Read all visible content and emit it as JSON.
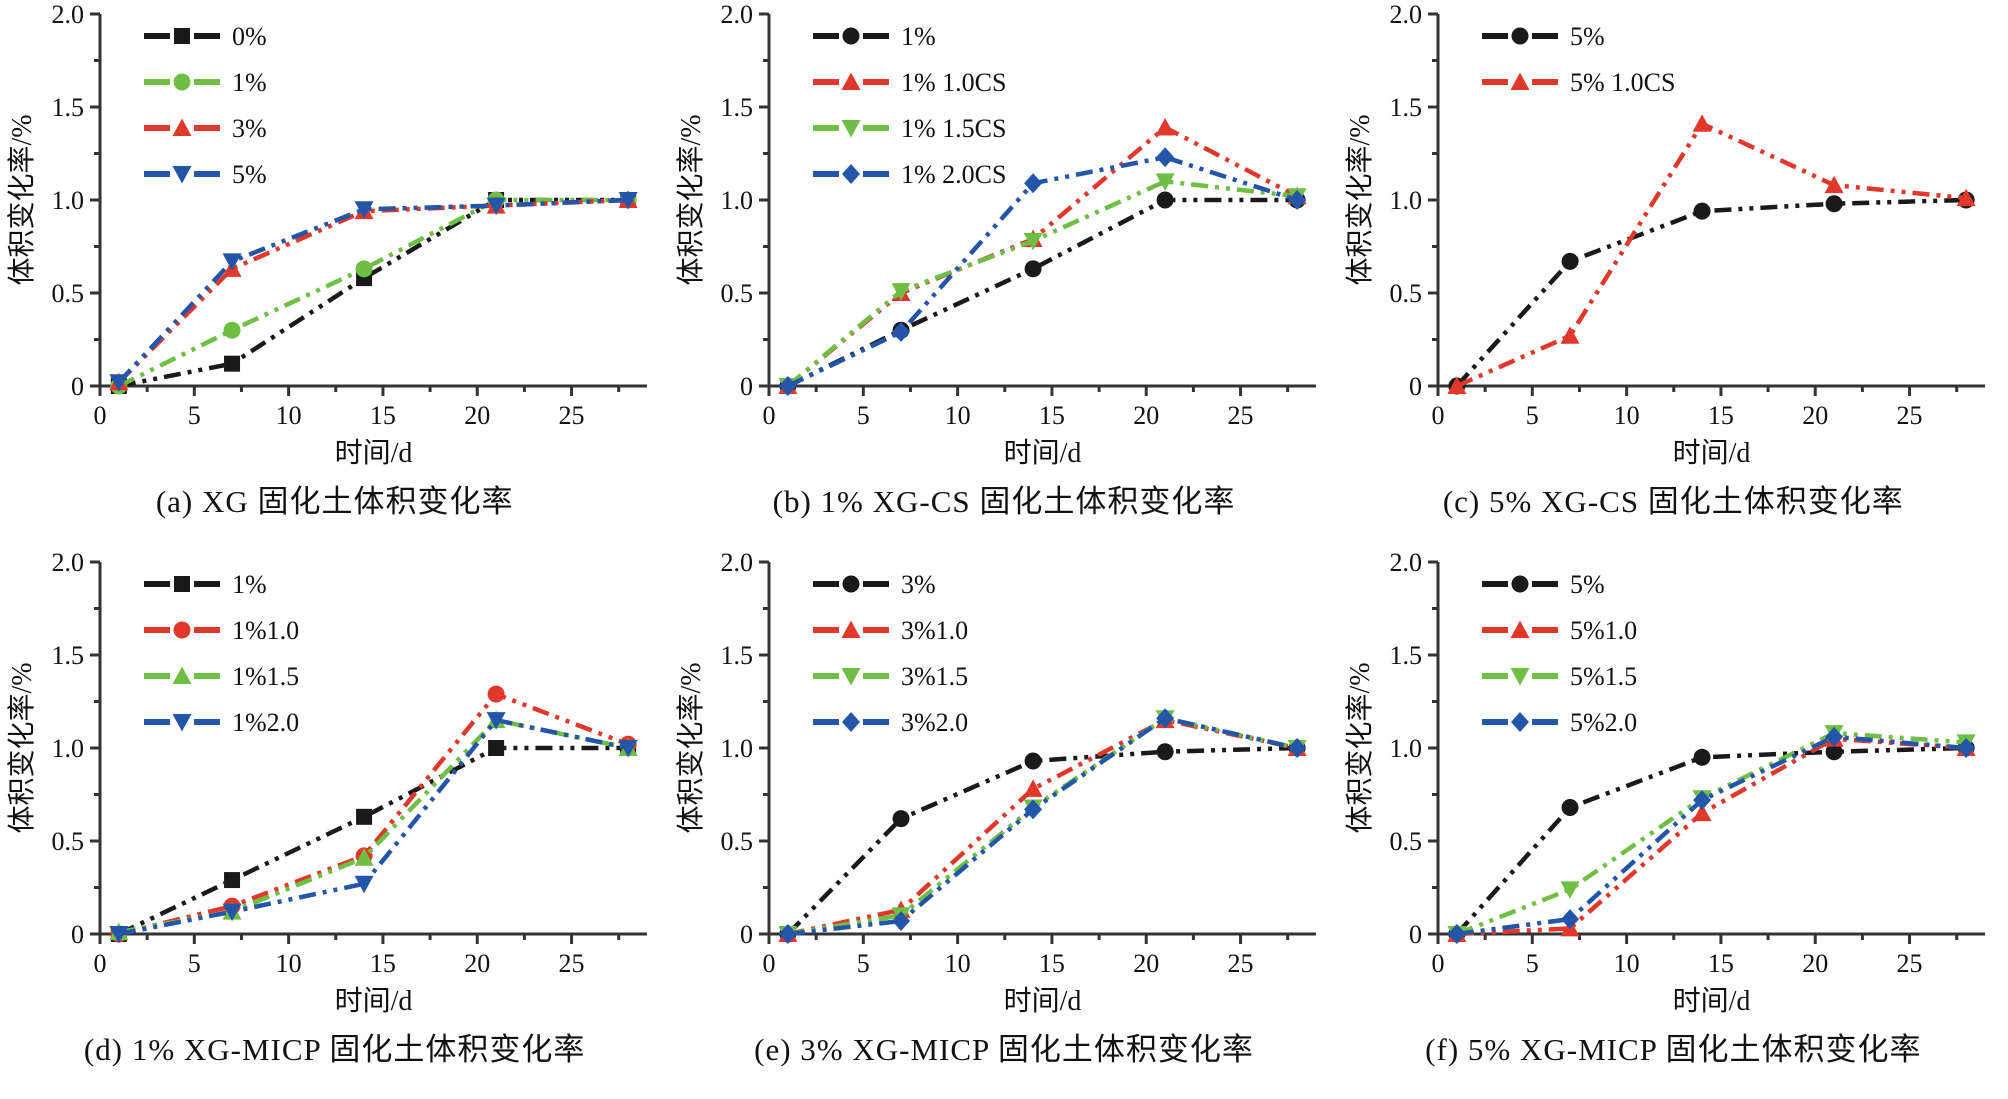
{
  "page": {
    "background": "#ffffff"
  },
  "palette": {
    "black": "#1a1a1a",
    "red": "#e0392b",
    "green": "#6fbf44",
    "blue": "#2356a8",
    "axis": "#333333"
  },
  "chart_data": [
    {
      "id": "a",
      "type": "line",
      "caption": "(a) XG 固化土体积变化率",
      "xlabel": "时间/d",
      "ylabel": "体积变化率/%",
      "xlim": [
        0,
        29
      ],
      "ylim": [
        0,
        2.0
      ],
      "xticks": [
        0,
        5,
        10,
        15,
        20,
        25
      ],
      "xticklabels": [
        "0",
        "5",
        "10",
        "15",
        "20",
        "25"
      ],
      "xminor": [
        2.5,
        7.5,
        12.5,
        17.5,
        22.5,
        27.5
      ],
      "yticks": [
        0,
        0.5,
        1.0,
        1.5,
        2.0
      ],
      "yticklabels": [
        "0",
        "0.5",
        "1.0",
        "1.5",
        "2.0"
      ],
      "yminor": [
        0.25,
        0.75,
        1.25,
        1.75
      ],
      "legend_position": "top-left",
      "grid": false,
      "x": [
        1,
        7,
        14,
        21,
        28
      ],
      "series": [
        {
          "name": "0%",
          "color": "#1a1a1a",
          "marker": "square",
          "values": [
            0,
            0.12,
            0.58,
            1.0,
            1.0
          ]
        },
        {
          "name": "1%",
          "color": "#6fbf44",
          "marker": "circle",
          "values": [
            0,
            0.3,
            0.63,
            1.0,
            1.0
          ]
        },
        {
          "name": "3%",
          "color": "#e0392b",
          "marker": "triangle-up",
          "values": [
            0.02,
            0.63,
            0.94,
            0.97,
            1.0
          ]
        },
        {
          "name": "5%",
          "color": "#2356a8",
          "marker": "triangle-down",
          "values": [
            0.02,
            0.67,
            0.95,
            0.97,
            1.0
          ]
        }
      ]
    },
    {
      "id": "b",
      "type": "line",
      "caption": "(b) 1% XG-CS 固化土体积变化率",
      "xlabel": "时间/d",
      "ylabel": "体积变化率/%",
      "xlim": [
        0,
        29
      ],
      "ylim": [
        0,
        2.0
      ],
      "xticks": [
        0,
        5,
        10,
        15,
        20,
        25
      ],
      "xticklabels": [
        "0",
        "5",
        "10",
        "15",
        "20",
        "25"
      ],
      "xminor": [
        2.5,
        7.5,
        12.5,
        17.5,
        22.5,
        27.5
      ],
      "yticks": [
        0,
        0.5,
        1.0,
        1.5,
        2.0
      ],
      "yticklabels": [
        "0",
        "0.5",
        "1.0",
        "1.5",
        "2.0"
      ],
      "yminor": [
        0.25,
        0.75,
        1.25,
        1.75
      ],
      "legend_position": "top-left",
      "grid": false,
      "x": [
        1,
        7,
        14,
        21,
        28
      ],
      "series": [
        {
          "name": "1%",
          "color": "#1a1a1a",
          "marker": "circle",
          "values": [
            0,
            0.3,
            0.63,
            1.0,
            1.0
          ]
        },
        {
          "name": "1% 1.0CS",
          "color": "#e0392b",
          "marker": "triangle-up",
          "values": [
            0,
            0.5,
            0.79,
            1.39,
            1.02
          ]
        },
        {
          "name": "1% 1.5CS",
          "color": "#6fbf44",
          "marker": "triangle-down",
          "values": [
            0,
            0.51,
            0.78,
            1.1,
            1.02
          ]
        },
        {
          "name": "1% 2.0CS",
          "color": "#2356a8",
          "marker": "diamond",
          "values": [
            0,
            0.29,
            1.09,
            1.23,
            1.0
          ]
        }
      ]
    },
    {
      "id": "c",
      "type": "line",
      "caption": "(c) 5% XG-CS 固化土体积变化率",
      "xlabel": "时间/d",
      "ylabel": "体积变化率/%",
      "xlim": [
        0,
        29
      ],
      "ylim": [
        0,
        2.0
      ],
      "xticks": [
        0,
        5,
        10,
        15,
        20,
        25
      ],
      "xticklabels": [
        "0",
        "5",
        "10",
        "15",
        "20",
        "25"
      ],
      "xminor": [
        2.5,
        7.5,
        12.5,
        17.5,
        22.5,
        27.5
      ],
      "yticks": [
        0,
        0.5,
        1.0,
        1.5,
        2.0
      ],
      "yticklabels": [
        "0",
        "0.5",
        "1.0",
        "1.5",
        "2.0"
      ],
      "yminor": [
        0.25,
        0.75,
        1.25,
        1.75
      ],
      "legend_position": "top-left",
      "grid": false,
      "x": [
        1,
        7,
        14,
        21,
        28
      ],
      "series": [
        {
          "name": "5%",
          "color": "#1a1a1a",
          "marker": "circle",
          "values": [
            0,
            0.67,
            0.94,
            0.98,
            1.0
          ]
        },
        {
          "name": "5% 1.0CS",
          "color": "#e0392b",
          "marker": "triangle-up",
          "values": [
            0,
            0.27,
            1.41,
            1.08,
            1.01
          ]
        }
      ]
    },
    {
      "id": "d",
      "type": "line",
      "caption": "(d) 1% XG-MICP 固化土体积变化率",
      "xlabel": "时间/d",
      "ylabel": "体积变化率/%",
      "xlim": [
        0,
        29
      ],
      "ylim": [
        0,
        2.0
      ],
      "xticks": [
        0,
        5,
        10,
        15,
        20,
        25
      ],
      "xticklabels": [
        "0",
        "5",
        "10",
        "15",
        "20",
        "25"
      ],
      "xminor": [
        2.5,
        7.5,
        12.5,
        17.5,
        22.5,
        27.5
      ],
      "yticks": [
        0,
        0.5,
        1.0,
        1.5,
        2.0
      ],
      "yticklabels": [
        "0",
        "0.5",
        "1.0",
        "1.5",
        "2.0"
      ],
      "yminor": [
        0.25,
        0.75,
        1.25,
        1.75
      ],
      "legend_position": "top-left",
      "grid": false,
      "x": [
        1,
        7,
        14,
        21,
        28
      ],
      "series": [
        {
          "name": "1%",
          "color": "#1a1a1a",
          "marker": "square",
          "values": [
            0,
            0.29,
            0.63,
            1.0,
            1.0
          ]
        },
        {
          "name": "1%1.0",
          "color": "#e0392b",
          "marker": "circle",
          "values": [
            0,
            0.15,
            0.42,
            1.29,
            1.02
          ]
        },
        {
          "name": "1%1.5",
          "color": "#6fbf44",
          "marker": "triangle-up",
          "values": [
            0.01,
            0.12,
            0.41,
            1.15,
            1.0
          ]
        },
        {
          "name": "1%2.0",
          "color": "#2356a8",
          "marker": "triangle-down",
          "values": [
            0,
            0.12,
            0.27,
            1.15,
            1.0
          ]
        }
      ]
    },
    {
      "id": "e",
      "type": "line",
      "caption": "(e) 3% XG-MICP 固化土体积变化率",
      "xlabel": "时间/d",
      "ylabel": "体积变化率/%",
      "xlim": [
        0,
        29
      ],
      "ylim": [
        0,
        2.0
      ],
      "xticks": [
        0,
        5,
        10,
        15,
        20,
        25
      ],
      "xticklabels": [
        "0",
        "5",
        "10",
        "15",
        "20",
        "25"
      ],
      "xminor": [
        2.5,
        7.5,
        12.5,
        17.5,
        22.5,
        27.5
      ],
      "yticks": [
        0,
        0.5,
        1.0,
        1.5,
        2.0
      ],
      "yticklabels": [
        "0",
        "0.5",
        "1.0",
        "1.5",
        "2.0"
      ],
      "yminor": [
        0.25,
        0.75,
        1.25,
        1.75
      ],
      "legend_position": "top-left",
      "grid": false,
      "x": [
        1,
        7,
        14,
        21,
        28
      ],
      "series": [
        {
          "name": "3%",
          "color": "#1a1a1a",
          "marker": "circle",
          "values": [
            0,
            0.62,
            0.93,
            0.98,
            1.0
          ]
        },
        {
          "name": "3%1.0",
          "color": "#e0392b",
          "marker": "triangle-up",
          "values": [
            0,
            0.13,
            0.78,
            1.15,
            1.0
          ]
        },
        {
          "name": "3%1.5",
          "color": "#6fbf44",
          "marker": "triangle-down",
          "values": [
            0,
            0.1,
            0.68,
            1.16,
            1.0
          ]
        },
        {
          "name": "3%2.0",
          "color": "#2356a8",
          "marker": "diamond",
          "values": [
            0,
            0.07,
            0.67,
            1.16,
            1.0
          ]
        }
      ]
    },
    {
      "id": "f",
      "type": "line",
      "caption": "(f) 5% XG-MICP 固化土体积变化率",
      "xlabel": "时间/d",
      "ylabel": "体积变化率/%",
      "xlim": [
        0,
        29
      ],
      "ylim": [
        0,
        2.0
      ],
      "xticks": [
        0,
        5,
        10,
        15,
        20,
        25
      ],
      "xticklabels": [
        "0",
        "5",
        "10",
        "15",
        "20",
        "25"
      ],
      "xminor": [
        2.5,
        7.5,
        12.5,
        17.5,
        22.5,
        27.5
      ],
      "yticks": [
        0,
        0.5,
        1.0,
        1.5,
        2.0
      ],
      "yticklabels": [
        "0",
        "0.5",
        "1.0",
        "1.5",
        "2.0"
      ],
      "yminor": [
        0.25,
        0.75,
        1.25,
        1.75
      ],
      "legend_position": "top-left",
      "grid": false,
      "x": [
        1,
        7,
        14,
        21,
        28
      ],
      "series": [
        {
          "name": "5%",
          "color": "#1a1a1a",
          "marker": "circle",
          "values": [
            0,
            0.68,
            0.95,
            0.98,
            1.0
          ]
        },
        {
          "name": "5%1.0",
          "color": "#e0392b",
          "marker": "triangle-up",
          "values": [
            0,
            0.03,
            0.65,
            1.05,
            1.0
          ]
        },
        {
          "name": "5%1.5",
          "color": "#6fbf44",
          "marker": "triangle-down",
          "values": [
            0,
            0.24,
            0.73,
            1.08,
            1.03
          ]
        },
        {
          "name": "5%2.0",
          "color": "#2356a8",
          "marker": "diamond",
          "values": [
            0,
            0.08,
            0.72,
            1.06,
            1.0
          ]
        }
      ]
    }
  ]
}
